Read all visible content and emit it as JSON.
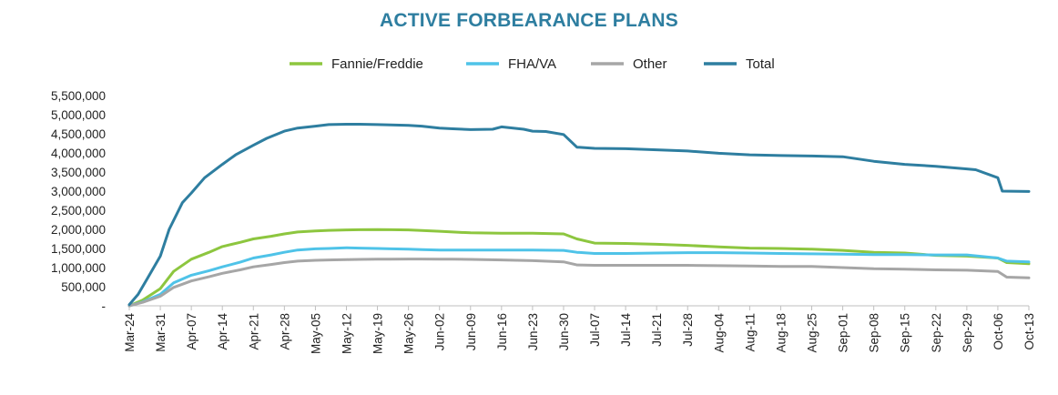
{
  "chart_data": {
    "type": "line",
    "title": "ACTIVE FORBEARANCE PLANS",
    "xlabel": "",
    "ylabel": "",
    "ylim": [
      0,
      5500000
    ],
    "yticks": [
      0,
      500000,
      1000000,
      1500000,
      2000000,
      2500000,
      3000000,
      3500000,
      4000000,
      4500000,
      5000000,
      5500000
    ],
    "ytick_labels": [
      "-",
      "500,000",
      "1,000,000",
      "1,500,000",
      "2,000,000",
      "2,500,000",
      "3,000,000",
      "3,500,000",
      "4,000,000",
      "4,500,000",
      "5,000,000",
      "5,500,000"
    ],
    "x_range": [
      0,
      203
    ],
    "xticks": [
      0,
      7,
      14,
      21,
      28,
      35,
      42,
      49,
      56,
      63,
      70,
      77,
      84,
      91,
      98,
      105,
      112,
      119,
      126,
      133,
      140,
      147,
      154,
      161,
      168,
      175,
      182,
      189,
      196,
      203
    ],
    "xtick_labels": [
      "Mar-24",
      "Mar-31",
      "Apr-07",
      "Apr-14",
      "Apr-21",
      "Apr-28",
      "May-05",
      "May-12",
      "May-19",
      "May-26",
      "Jun-02",
      "Jun-09",
      "Jun-16",
      "Jun-23",
      "Jun-30",
      "Jul-07",
      "Jul-14",
      "Jul-21",
      "Jul-28",
      "Aug-04",
      "Aug-11",
      "Aug-18",
      "Aug-25",
      "Sep-01",
      "Sep-08",
      "Sep-15",
      "Sep-22",
      "Sep-29",
      "Oct-06",
      "Oct-13"
    ],
    "legend_position": "top",
    "series": [
      {
        "name": "Fannie/Freddie",
        "color": "#8dc63f",
        "x": [
          0,
          3,
          7,
          10,
          14,
          18,
          21,
          25,
          28,
          32,
          35,
          38,
          42,
          45,
          49,
          52,
          56,
          59,
          63,
          66,
          70,
          73,
          77,
          84,
          91,
          98,
          101,
          105,
          112,
          119,
          126,
          133,
          140,
          147,
          154,
          161,
          168,
          175,
          182,
          189,
          196,
          198,
          203
        ],
        "values": [
          0,
          150000,
          450000,
          900000,
          1220000,
          1400000,
          1550000,
          1660000,
          1750000,
          1820000,
          1880000,
          1930000,
          1960000,
          1975000,
          1985000,
          1990000,
          1995000,
          1990000,
          1985000,
          1970000,
          1950000,
          1930000,
          1910000,
          1900000,
          1900000,
          1880000,
          1750000,
          1640000,
          1630000,
          1610000,
          1580000,
          1540000,
          1510000,
          1500000,
          1480000,
          1450000,
          1400000,
          1380000,
          1320000,
          1300000,
          1250000,
          1130000,
          1100000
        ]
      },
      {
        "name": "FHA/VA",
        "color": "#4fc3e8",
        "x": [
          0,
          3,
          7,
          10,
          14,
          18,
          21,
          25,
          28,
          32,
          35,
          38,
          42,
          45,
          49,
          52,
          56,
          59,
          63,
          66,
          70,
          73,
          77,
          84,
          91,
          98,
          101,
          105,
          112,
          119,
          126,
          133,
          140,
          147,
          154,
          161,
          168,
          175,
          182,
          189,
          196,
          198,
          203
        ],
        "values": [
          0,
          100000,
          300000,
          600000,
          800000,
          920000,
          1020000,
          1140000,
          1250000,
          1330000,
          1400000,
          1460000,
          1490000,
          1500000,
          1520000,
          1510000,
          1500000,
          1490000,
          1480000,
          1470000,
          1460000,
          1460000,
          1460000,
          1460000,
          1460000,
          1450000,
          1400000,
          1370000,
          1370000,
          1380000,
          1390000,
          1390000,
          1380000,
          1370000,
          1360000,
          1350000,
          1340000,
          1340000,
          1330000,
          1330000,
          1250000,
          1170000,
          1150000
        ]
      },
      {
        "name": "Other",
        "color": "#a6a6a6",
        "x": [
          0,
          3,
          7,
          10,
          14,
          18,
          21,
          25,
          28,
          32,
          35,
          38,
          42,
          45,
          49,
          52,
          56,
          59,
          63,
          66,
          70,
          73,
          77,
          84,
          91,
          98,
          101,
          105,
          112,
          119,
          126,
          133,
          140,
          147,
          154,
          161,
          168,
          175,
          182,
          189,
          196,
          198,
          203
        ],
        "values": [
          0,
          90000,
          250000,
          480000,
          650000,
          760000,
          850000,
          940000,
          1020000,
          1080000,
          1130000,
          1170000,
          1190000,
          1200000,
          1210000,
          1215000,
          1220000,
          1220000,
          1225000,
          1225000,
          1220000,
          1220000,
          1215000,
          1200000,
          1180000,
          1150000,
          1070000,
          1060000,
          1060000,
          1060000,
          1060000,
          1050000,
          1040000,
          1030000,
          1030000,
          1000000,
          970000,
          960000,
          940000,
          930000,
          900000,
          750000,
          730000
        ]
      },
      {
        "name": "Total",
        "color": "#2e7ea0",
        "x": [
          0,
          2,
          4,
          7,
          9,
          12,
          14,
          17,
          21,
          24,
          28,
          31,
          35,
          38,
          42,
          45,
          49,
          52,
          56,
          59,
          63,
          66,
          70,
          73,
          77,
          82,
          84,
          89,
          91,
          94,
          98,
          101,
          105,
          112,
          119,
          126,
          133,
          140,
          147,
          154,
          161,
          168,
          175,
          182,
          189,
          191,
          196,
          197,
          203
        ],
        "values": [
          30000,
          300000,
          700000,
          1300000,
          2000000,
          2700000,
          2950000,
          3350000,
          3700000,
          3950000,
          4200000,
          4380000,
          4570000,
          4650000,
          4700000,
          4740000,
          4750000,
          4750000,
          4740000,
          4730000,
          4720000,
          4700000,
          4650000,
          4630000,
          4610000,
          4620000,
          4680000,
          4620000,
          4570000,
          4560000,
          4480000,
          4150000,
          4120000,
          4110000,
          4080000,
          4050000,
          3990000,
          3950000,
          3930000,
          3920000,
          3900000,
          3780000,
          3700000,
          3650000,
          3580000,
          3560000,
          3350000,
          3000000,
          2990000
        ]
      }
    ]
  }
}
